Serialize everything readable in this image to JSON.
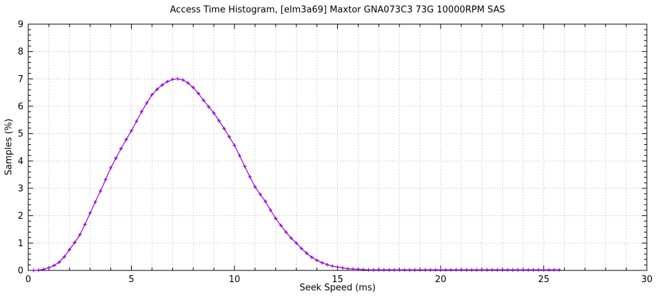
{
  "chart_data": {
    "type": "line",
    "title": "Access Time Histogram, [elm3a69] Maxtor GNA073C3 73G 10000RPM SAS",
    "xlabel": "Seek Speed (ms)",
    "ylabel": "Samples (%)",
    "xlim": [
      0,
      30
    ],
    "ylim": [
      0,
      9
    ],
    "x_ticks": [
      0,
      5,
      10,
      15,
      20,
      25,
      30
    ],
    "y_ticks": [
      0,
      1,
      2,
      3,
      4,
      5,
      6,
      7,
      8,
      9
    ],
    "x_minor_step": 1,
    "y_minor_step": 0.2,
    "grid": "dotted gray, every 1 unit on both axes",
    "legend": "none",
    "marker": "plus",
    "colors": {
      "line": "#9400d3",
      "grid": "#b0b0b0",
      "axis": "#000000",
      "text": "#000000",
      "background": "#ffffff"
    },
    "series": [
      {
        "name": "samples-percent",
        "x": [
          0.25,
          0.5,
          0.75,
          1,
          1.25,
          1.5,
          1.75,
          2,
          2.25,
          2.5,
          2.75,
          3,
          3.25,
          3.5,
          3.75,
          4,
          4.25,
          4.5,
          4.75,
          5,
          5.25,
          5.5,
          5.75,
          6,
          6.25,
          6.5,
          6.75,
          7,
          7.25,
          7.5,
          7.75,
          8,
          8.25,
          8.5,
          8.75,
          9,
          9.25,
          9.5,
          9.75,
          10,
          10.25,
          10.5,
          10.75,
          11,
          11.25,
          11.5,
          11.75,
          12,
          12.25,
          12.5,
          12.75,
          13,
          13.25,
          13.5,
          13.75,
          14,
          14.25,
          14.5,
          14.75,
          15,
          15.25,
          15.5,
          15.75,
          16,
          16.25,
          16.5,
          16.75,
          17,
          17.25,
          17.5,
          17.75,
          18,
          18.25,
          18.5,
          18.75,
          19,
          19.25,
          19.5,
          19.75,
          20,
          20.25,
          20.5,
          20.75,
          21,
          21.25,
          21.5,
          21.75,
          22,
          22.25,
          22.5,
          22.75,
          23,
          23.25,
          23.5,
          23.75,
          24,
          24.25,
          24.5,
          24.75,
          25,
          25.25,
          25.5,
          25.75
        ],
        "y": [
          0,
          0.01,
          0.04,
          0.1,
          0.18,
          0.3,
          0.5,
          0.76,
          1.02,
          1.3,
          1.68,
          2.1,
          2.5,
          2.9,
          3.32,
          3.75,
          4.1,
          4.45,
          4.78,
          5.1,
          5.45,
          5.8,
          6.12,
          6.42,
          6.62,
          6.78,
          6.9,
          6.98,
          7,
          6.96,
          6.85,
          6.68,
          6.47,
          6.22,
          5.98,
          5.75,
          5.47,
          5.18,
          4.88,
          4.57,
          4.19,
          3.8,
          3.42,
          3.05,
          2.78,
          2.52,
          2.2,
          1.9,
          1.64,
          1.4,
          1.18,
          1,
          0.8,
          0.63,
          0.48,
          0.37,
          0.28,
          0.21,
          0.16,
          0.12,
          0.09,
          0.06,
          0.05,
          0.04,
          0.03,
          0.02,
          0.02,
          0.02,
          0.02,
          0.02,
          0.02,
          0.02,
          0.02,
          0.02,
          0.02,
          0.02,
          0.02,
          0.02,
          0.02,
          0.02,
          0.02,
          0.02,
          0.02,
          0.02,
          0.02,
          0.02,
          0.02,
          0.02,
          0.02,
          0.02,
          0.02,
          0.02,
          0.02,
          0.02,
          0.02,
          0.02,
          0.02,
          0.02,
          0.02,
          0.02,
          0.02,
          0.02,
          0.02
        ]
      }
    ]
  }
}
